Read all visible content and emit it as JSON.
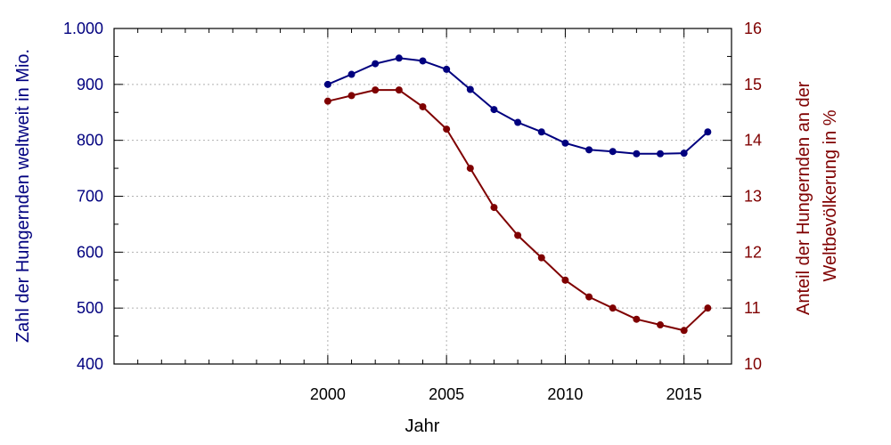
{
  "chart_data": {
    "type": "line",
    "xlabel": "Jahr",
    "ylabel_left": "Zahl der Hungernden weltweit in Mio.",
    "ylabel_right_lines": [
      "Anteil der Hungernden an der",
      "Weltbevölkerung in %"
    ],
    "xlim": [
      1991,
      2017
    ],
    "ylim_left": [
      400,
      1000
    ],
    "ylim_right": [
      10,
      16
    ],
    "x_ticks": [
      2000,
      2005,
      2010,
      2015
    ],
    "x_tick_labels": [
      "2000",
      "2005",
      "2010",
      "2015"
    ],
    "y_left_ticks": [
      400,
      500,
      600,
      700,
      800,
      900,
      1000
    ],
    "y_left_tick_labels": [
      "400",
      "500",
      "600",
      "700",
      "800",
      "900",
      "1.000"
    ],
    "y_right_ticks": [
      10,
      11,
      12,
      13,
      14,
      15,
      16
    ],
    "y_right_tick_labels": [
      "10",
      "11",
      "12",
      "13",
      "14",
      "15",
      "16"
    ],
    "grid": true,
    "colors": {
      "left_series": "#00007f",
      "right_series": "#7f0000",
      "grid": "#b0b0b0"
    },
    "series": [
      {
        "axis": "left",
        "x": [
          2000,
          2001,
          2002,
          2003,
          2004,
          2005,
          2006,
          2007,
          2008,
          2009,
          2010,
          2011,
          2012,
          2013,
          2014,
          2015,
          2016
        ],
        "values": [
          900,
          918,
          937,
          947,
          942,
          927,
          891,
          855,
          832,
          815,
          795,
          783,
          780,
          776,
          776,
          777,
          815
        ]
      },
      {
        "axis": "right",
        "x": [
          2000,
          2001,
          2002,
          2003,
          2004,
          2005,
          2006,
          2007,
          2008,
          2009,
          2010,
          2011,
          2012,
          2013,
          2014,
          2015,
          2016
        ],
        "values": [
          14.7,
          14.8,
          14.9,
          14.9,
          14.6,
          14.2,
          13.5,
          12.8,
          12.3,
          11.9,
          11.5,
          11.2,
          11.0,
          10.8,
          10.7,
          10.6,
          11.0
        ]
      }
    ]
  }
}
